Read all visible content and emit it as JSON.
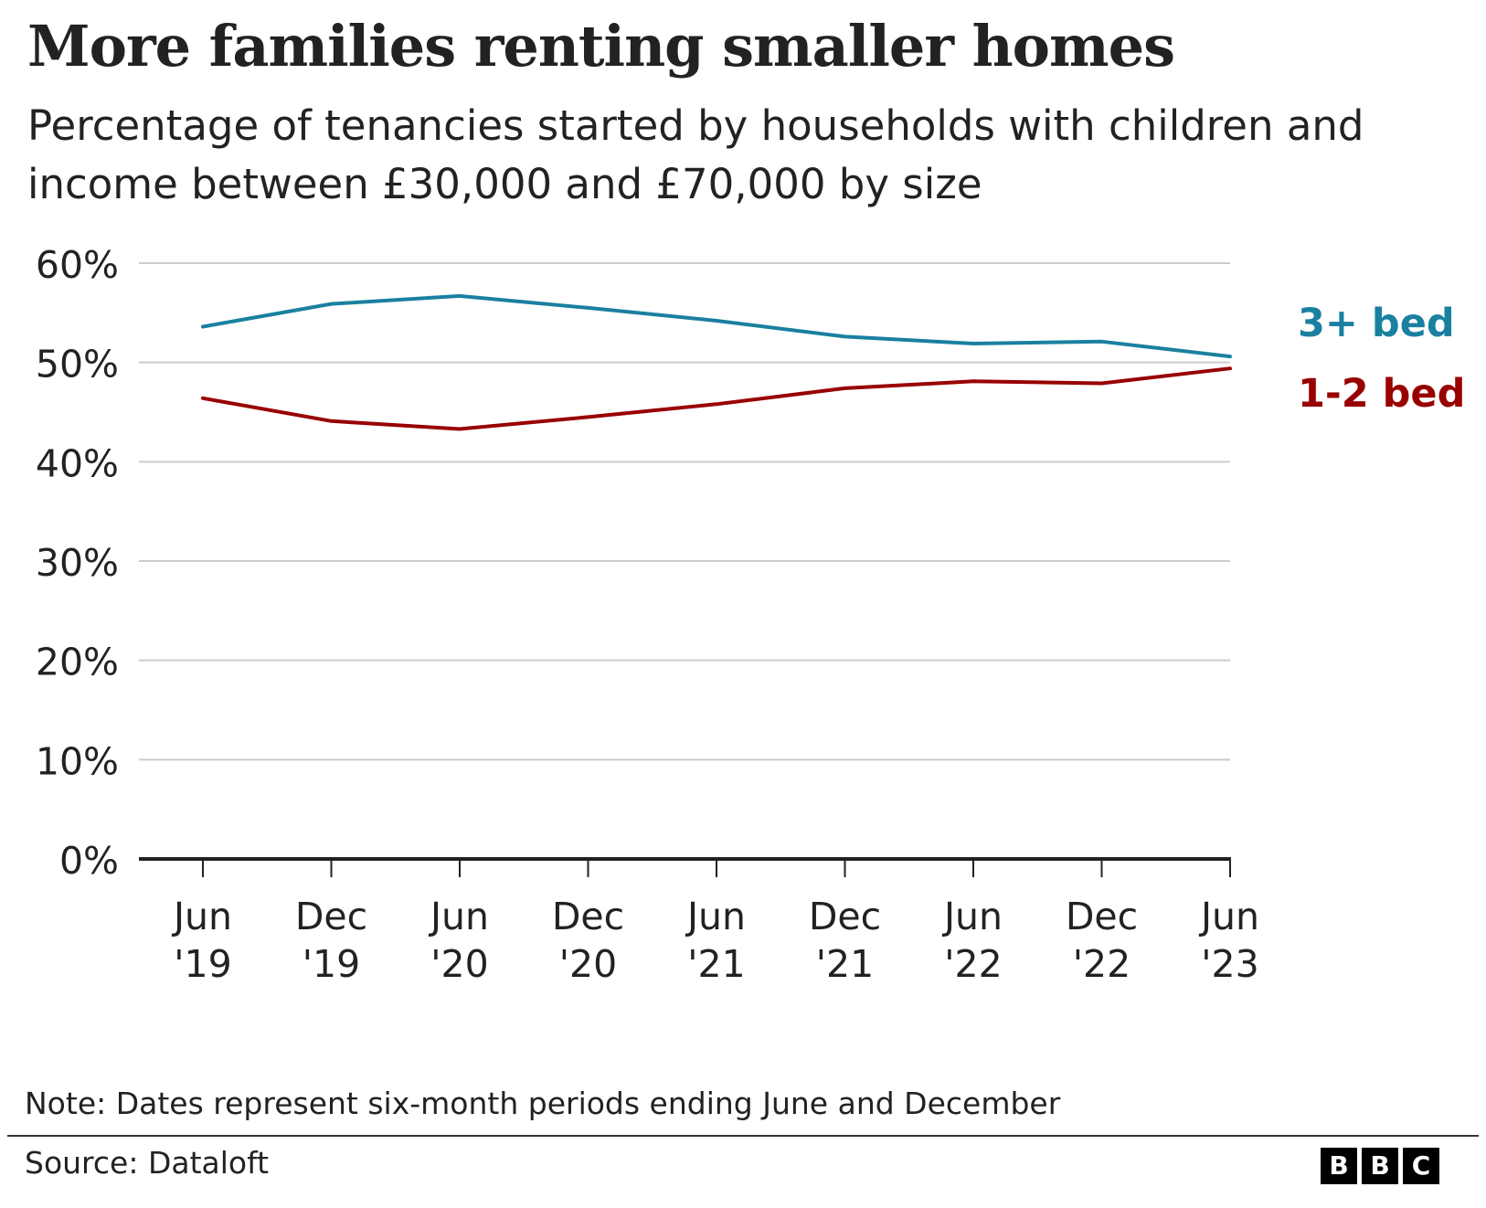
{
  "title": "More families renting smaller homes",
  "subtitle": "Percentage of tenancies started by households with children and income between £30,000 and £70,000 by size",
  "note": "Note: Dates represent six-month periods ending June and December",
  "source": "Source: Dataloft",
  "logo": {
    "letters": [
      "B",
      "B",
      "C"
    ]
  },
  "chart_data": {
    "type": "line",
    "categories": [
      [
        "Jun",
        "'19"
      ],
      [
        "Dec",
        "'19"
      ],
      [
        "Jun",
        "'20"
      ],
      [
        "Dec",
        "'20"
      ],
      [
        "Jun",
        "'21"
      ],
      [
        "Dec",
        "'21"
      ],
      [
        "Jun",
        "'22"
      ],
      [
        "Dec",
        "'22"
      ],
      [
        "Jun",
        "'23"
      ]
    ],
    "ylim": [
      0,
      60
    ],
    "yticks": [
      0,
      10,
      20,
      30,
      40,
      50,
      60
    ],
    "ytick_labels": [
      "0%",
      "10%",
      "20%",
      "30%",
      "40%",
      "50%",
      "60%"
    ],
    "grid": true,
    "legend": "direct labels at line ends",
    "series": [
      {
        "name": "3+ bed",
        "color": "#1a80a0",
        "values": [
          53.6,
          55.9,
          56.7,
          55.5,
          54.2,
          52.6,
          51.9,
          52.1,
          50.6
        ]
      },
      {
        "name": "1-2 bed",
        "color": "#990000",
        "values": [
          46.4,
          44.1,
          43.3,
          44.5,
          45.8,
          47.4,
          48.1,
          47.9,
          49.4
        ]
      }
    ]
  }
}
